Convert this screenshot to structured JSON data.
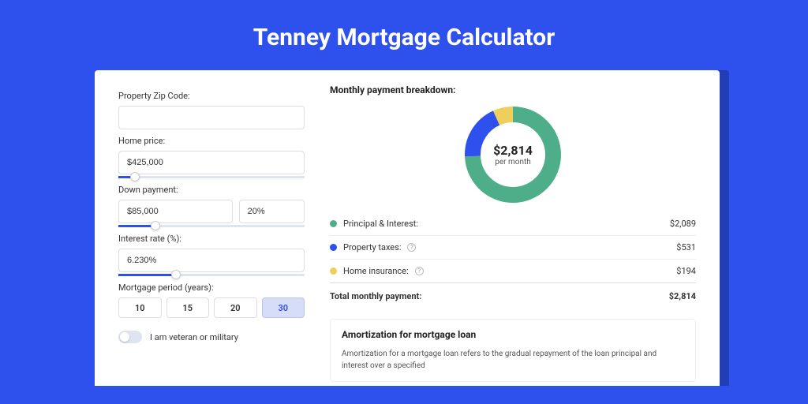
{
  "page": {
    "title": "Tenney Mortgage Calculator",
    "colors": {
      "bg": "#2e50ed",
      "shadow": "#223db8",
      "card": "#ffffff",
      "accent": "#2e50ed",
      "border": "#dddddd",
      "text": "#333333"
    }
  },
  "form": {
    "zip": {
      "label": "Property Zip Code:",
      "value": ""
    },
    "price": {
      "label": "Home price:",
      "value": "$425,000",
      "slider_pct": 9
    },
    "down": {
      "label": "Down payment:",
      "amount": "$85,000",
      "pct": "20%",
      "slider_pct": 20
    },
    "rate": {
      "label": "Interest rate (%):",
      "value": "6.230%",
      "slider_pct": 31
    },
    "period": {
      "label": "Mortgage period (years):",
      "options": [
        "10",
        "15",
        "20",
        "30"
      ],
      "selected": "30"
    },
    "veteran": {
      "label": "I am veteran or military",
      "checked": false
    }
  },
  "breakdown": {
    "title": "Monthly payment breakdown:",
    "donut": {
      "amount": "$2,814",
      "sub": "per month",
      "type": "donut",
      "size": 122,
      "thickness": 20,
      "slices": [
        {
          "value": 2089,
          "color": "#4fae8a"
        },
        {
          "value": 531,
          "color": "#2e50ed"
        },
        {
          "value": 194,
          "color": "#efce5b"
        }
      ]
    },
    "items": [
      {
        "label": "Principal & Interest:",
        "value": "$2,089",
        "color": "#4fae8a",
        "info": false
      },
      {
        "label": "Property taxes:",
        "value": "$531",
        "color": "#2e50ed",
        "info": true
      },
      {
        "label": "Home insurance:",
        "value": "$194",
        "color": "#efce5b",
        "info": true
      }
    ],
    "total": {
      "label": "Total monthly payment:",
      "value": "$2,814"
    }
  },
  "amortization": {
    "title": "Amortization for mortgage loan",
    "text": "Amortization for a mortgage loan refers to the gradual repayment of the loan principal and interest over a specified"
  }
}
